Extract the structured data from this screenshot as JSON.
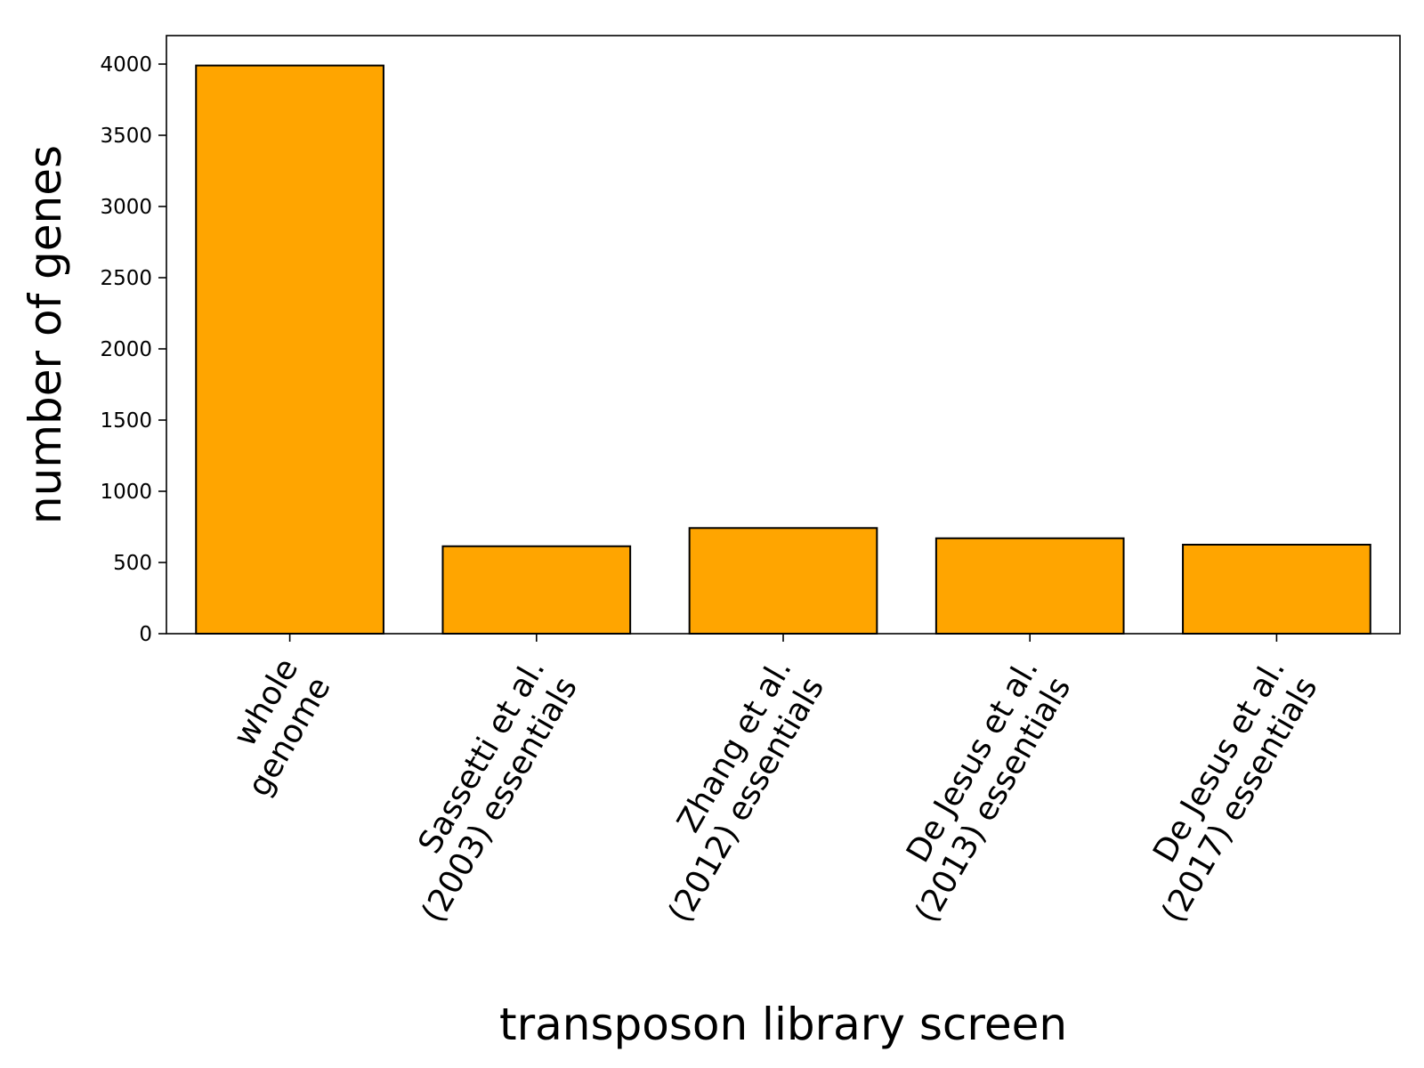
{
  "chart_data": {
    "type": "bar",
    "categories": [
      [
        "whole",
        "genome"
      ],
      [
        "Sassetti et al.",
        "(2003) essentials"
      ],
      [
        "Zhang et al.",
        "(2012) essentials"
      ],
      [
        "De Jesus et al.",
        "(2013) essentials"
      ],
      [
        "De Jesus et al.",
        "(2017) essentials"
      ]
    ],
    "values": [
      3990,
      614,
      742,
      670,
      625
    ],
    "xlabel": "transposon library screen",
    "ylabel": "number of genes",
    "ylim": [
      0,
      4200
    ],
    "yticks": [
      0,
      500,
      1000,
      1500,
      2000,
      2500,
      3000,
      3500,
      4000
    ],
    "grid": false,
    "bar_color": "#ffa500",
    "edge_color": "#000000"
  }
}
